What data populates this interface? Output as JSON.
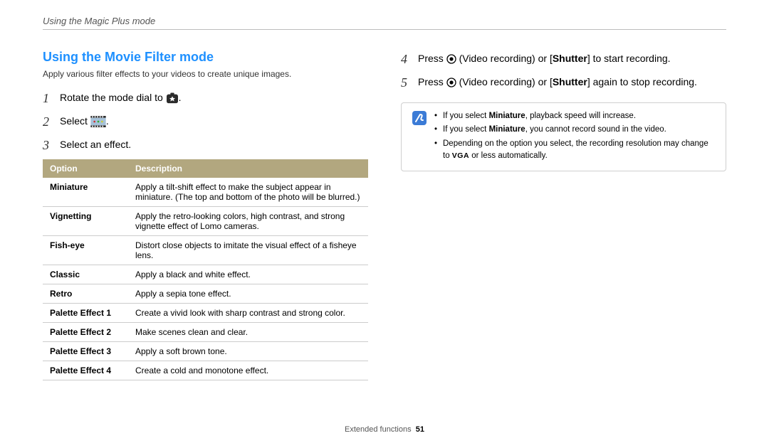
{
  "breadcrumb": "Using the Magic Plus mode",
  "section_title": "Using the Movie Filter mode",
  "intro": "Apply various filter effects to your videos to create unique images.",
  "colors": {
    "title": "#1e90ff",
    "table_header_bg": "#b2a77f",
    "table_header_text": "#ffffff",
    "border": "#cccccc"
  },
  "steps_left": [
    {
      "num": "1",
      "pre": "Rotate the mode dial to ",
      "icon": "mode-dial",
      "post": "."
    },
    {
      "num": "2",
      "pre": "Select ",
      "icon": "film-strip",
      "post": "."
    },
    {
      "num": "3",
      "pre": "Select an effect.",
      "icon": null,
      "post": ""
    }
  ],
  "table": {
    "headers": [
      "Option",
      "Description"
    ],
    "rows": [
      [
        "Miniature",
        "Apply a tilt-shift effect to make the subject appear in miniature. (The top and bottom of the photo will be blurred.)"
      ],
      [
        "Vignetting",
        "Apply the retro-looking colors, high contrast, and strong vignette effect of Lomo cameras."
      ],
      [
        "Fish-eye",
        "Distort close objects to imitate the visual effect of a fisheye lens."
      ],
      [
        "Classic",
        "Apply a black and white effect."
      ],
      [
        "Retro",
        "Apply a sepia tone effect."
      ],
      [
        "Palette Effect 1",
        "Create a vivid look with sharp contrast and strong color."
      ],
      [
        "Palette Effect 2",
        "Make scenes clean and clear."
      ],
      [
        "Palette Effect 3",
        "Apply a soft brown tone."
      ],
      [
        "Palette Effect 4",
        "Create a cold and monotone effect."
      ]
    ]
  },
  "steps_right": [
    {
      "num": "4",
      "parts": [
        "Press ",
        {
          "icon": "rec"
        },
        " (Video recording) or [",
        {
          "bold": "Shutter"
        },
        "] to start recording."
      ]
    },
    {
      "num": "5",
      "parts": [
        "Press ",
        {
          "icon": "rec"
        },
        " (Video recording) or [",
        {
          "bold": "Shutter"
        },
        "] again to stop recording."
      ]
    }
  ],
  "notes": [
    {
      "parts": [
        "If you select ",
        {
          "bold": "Miniature"
        },
        ", playback speed will increase."
      ]
    },
    {
      "parts": [
        "If you select ",
        {
          "bold": "Miniature"
        },
        ", you cannot record sound in the video."
      ]
    },
    {
      "parts": [
        "Depending on the option you select, the recording resolution may change to ",
        {
          "vga": "VGA"
        },
        " or less automatically."
      ]
    }
  ],
  "footer": {
    "section": "Extended functions",
    "page": "51"
  }
}
